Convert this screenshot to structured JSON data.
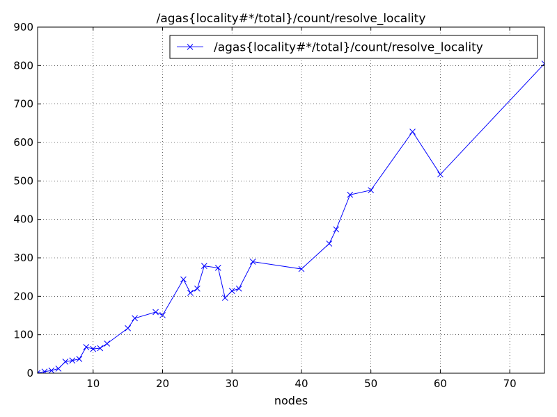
{
  "chart_data": {
    "type": "line",
    "title": "/agas{locality#*/total}/count/resolve_locality",
    "xlabel": "nodes",
    "ylabel": "",
    "xlim": [
      2,
      75
    ],
    "ylim": [
      0,
      900
    ],
    "xticks": [
      10,
      20,
      30,
      40,
      50,
      60,
      70
    ],
    "yticks": [
      0,
      100,
      200,
      300,
      400,
      500,
      600,
      700,
      800,
      900
    ],
    "grid": true,
    "legend_position": "top-right",
    "series": [
      {
        "name": "/agas{locality#*/total}/count/resolve_locality",
        "color": "#0000ff",
        "marker": "x",
        "x": [
          2,
          3,
          4,
          5,
          6,
          7,
          8,
          9,
          10,
          11,
          12,
          15,
          16,
          19,
          20,
          23,
          24,
          25,
          26,
          28,
          29,
          30,
          31,
          33,
          40,
          44,
          45,
          47,
          50,
          56,
          60,
          75
        ],
        "y": [
          1,
          4,
          7,
          12,
          30,
          33,
          37,
          68,
          63,
          65,
          77,
          117,
          143,
          159,
          151,
          244,
          209,
          220,
          279,
          274,
          196,
          214,
          220,
          290,
          271,
          337,
          374,
          464,
          476,
          628,
          517,
          805
        ]
      }
    ]
  }
}
